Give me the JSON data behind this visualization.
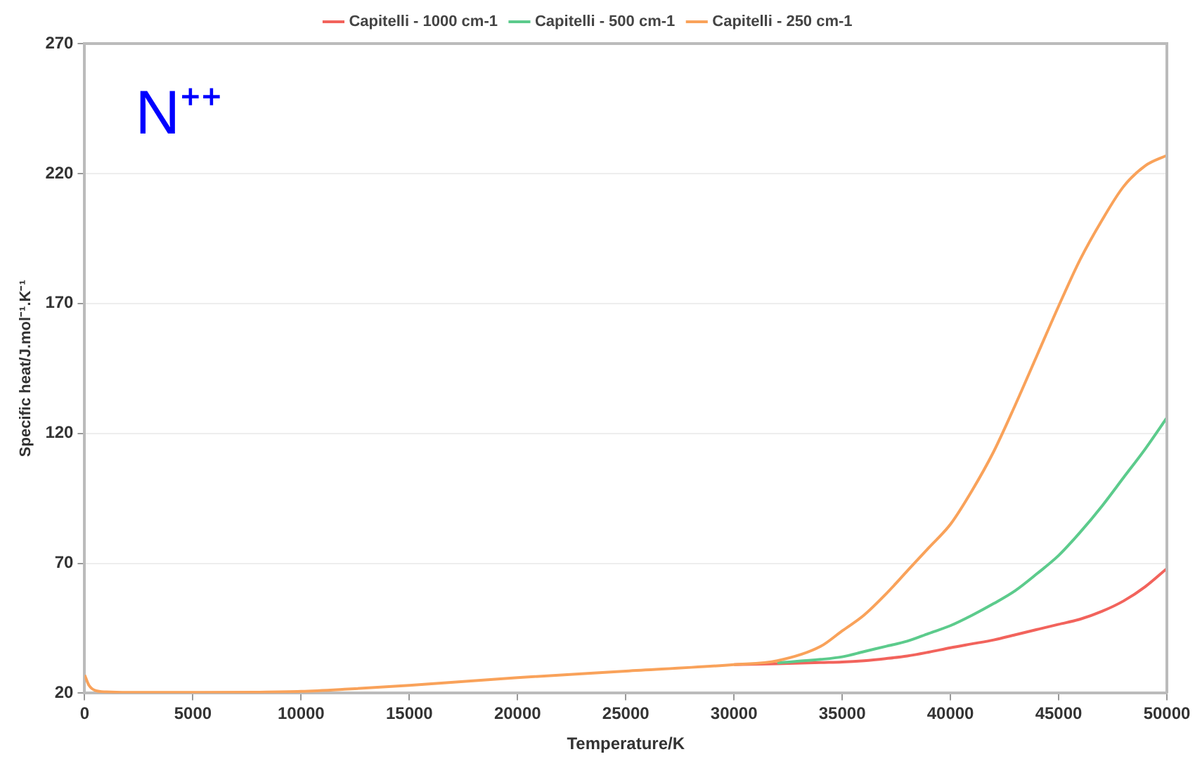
{
  "chart_data": {
    "type": "line",
    "xlabel": "Temperature/K",
    "ylabel": "Specific heat/J.mol⁻¹.K⁻¹",
    "annotations": [
      "N⁺⁺"
    ],
    "x": [
      0,
      200,
      500,
      1000,
      2000,
      5000,
      8000,
      10000,
      12000,
      15000,
      20000,
      25000,
      30000,
      32000,
      34000,
      35000,
      36000,
      37000,
      38000,
      39000,
      40000,
      41000,
      42000,
      43000,
      44000,
      45000,
      46000,
      47000,
      48000,
      49000,
      50000
    ],
    "series": [
      {
        "name": "Capitelli - 1000 cm-1",
        "color": "#f2635c",
        "values": [
          null,
          null,
          null,
          null,
          null,
          null,
          null,
          null,
          null,
          null,
          null,
          null,
          31,
          31.3,
          31.8,
          32,
          32.5,
          33.3,
          34.3,
          35.8,
          37.5,
          39,
          40.5,
          42.5,
          44.5,
          46.5,
          48.5,
          51.5,
          55.5,
          61,
          68
        ]
      },
      {
        "name": "Capitelli - 500 cm-1",
        "color": "#5ccb8c",
        "values": [
          null,
          null,
          null,
          null,
          null,
          null,
          null,
          null,
          null,
          null,
          null,
          null,
          null,
          31.7,
          33,
          34,
          36,
          38,
          40,
          43,
          46,
          50,
          54.5,
          59.5,
          66,
          73,
          82,
          92,
          103,
          114,
          126
        ]
      },
      {
        "name": "Capitelli - 250 cm-1",
        "color": "#f9a25a",
        "values": [
          27,
          23,
          21,
          20.5,
          20.3,
          20.3,
          20.4,
          20.7,
          21.5,
          23,
          26,
          28.5,
          31,
          32.5,
          38,
          44,
          50,
          58,
          67,
          76,
          85,
          98,
          113,
          131,
          150,
          169,
          187,
          202,
          215,
          223,
          227
        ]
      }
    ],
    "xlim": [
      0,
      50000
    ],
    "xticks": [
      0,
      5000,
      10000,
      15000,
      20000,
      25000,
      30000,
      35000,
      40000,
      45000,
      50000
    ],
    "ylim": [
      20,
      270
    ],
    "yticks": [
      20,
      70,
      120,
      170,
      220,
      270
    ],
    "grid": "y",
    "legend": "top",
    "marker": "none",
    "line_style": "solid"
  }
}
